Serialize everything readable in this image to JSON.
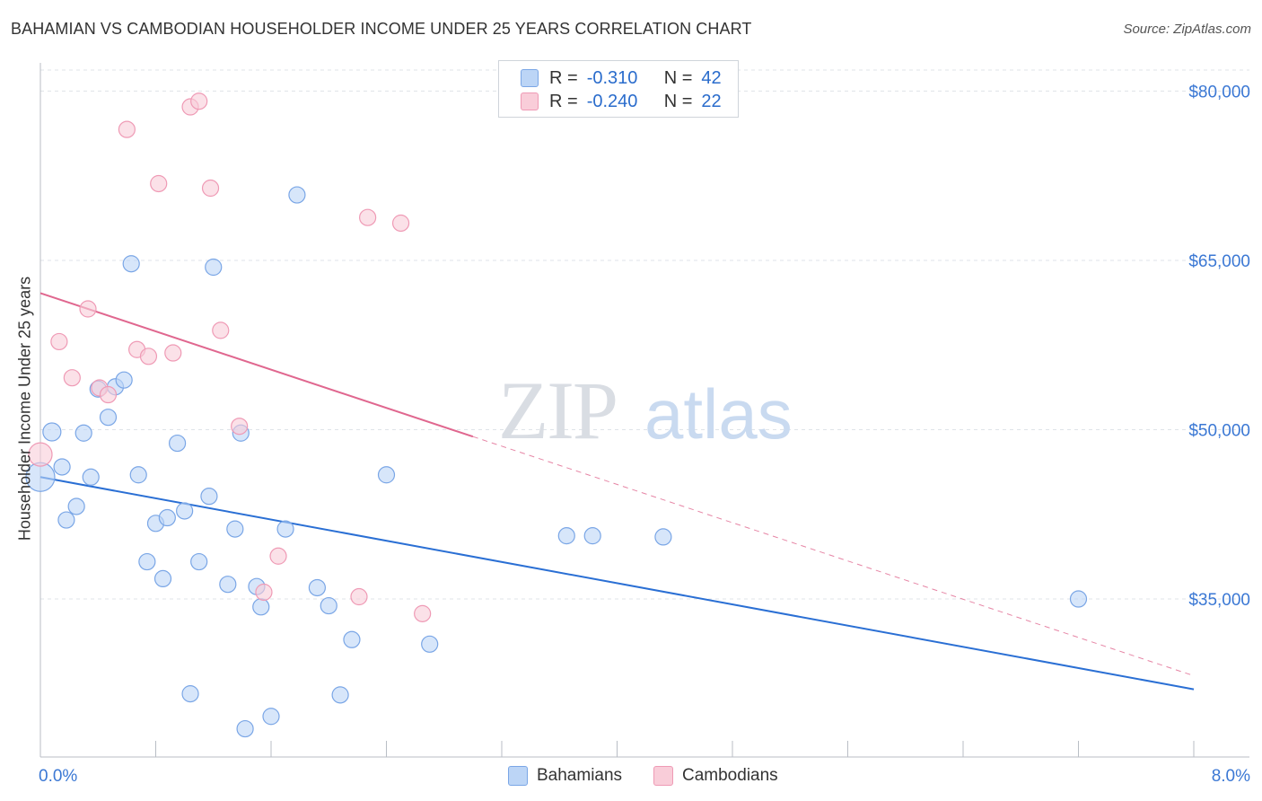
{
  "title": "BAHAMIAN VS CAMBODIAN HOUSEHOLDER INCOME UNDER 25 YEARS CORRELATION CHART",
  "source": "Source: ZipAtlas.com",
  "watermark": {
    "zip": "ZIP",
    "atlas": "atlas"
  },
  "legend_top": [
    {
      "r_label": "R =",
      "r_value": "-0.310",
      "n_label": "N =",
      "n_value": "42",
      "color": "#7aa6e6",
      "fill": "#bcd5f6"
    },
    {
      "r_label": "R =",
      "r_value": "-0.240",
      "n_label": "N =",
      "n_value": "22",
      "color": "#ef9ab5",
      "fill": "#f9cdd9"
    }
  ],
  "legend_bottom": [
    {
      "label": "Bahamians",
      "color": "#7aa6e6",
      "fill": "#bcd5f6"
    },
    {
      "label": "Cambodians",
      "color": "#ef9ab5",
      "fill": "#f9cdd9"
    }
  ],
  "chart_data": {
    "type": "scatter",
    "title": "BAHAMIAN VS CAMBODIAN HOUSEHOLDER INCOME UNDER 25 YEARS CORRELATION CHART",
    "xlabel": "",
    "ylabel": "Householder Income Under 25 years",
    "xlim": [
      0,
      8
    ],
    "ylim": [
      21000,
      82500
    ],
    "x_tick_labels": [
      "0.0%",
      "8.0%"
    ],
    "y_ticks": [
      35000,
      50000,
      65000,
      80000
    ],
    "y_tick_labels": [
      "$35,000",
      "$50,000",
      "$65,000",
      "$80,000"
    ],
    "grid": true,
    "legend_position": "top-center",
    "series": [
      {
        "name": "Bahamians",
        "color": "#2a6fd4",
        "marker_fill": "#bcd5f6",
        "marker_stroke": "#7aa6e6",
        "trend": {
          "x": [
            0,
            8
          ],
          "y": [
            45800,
            27000
          ],
          "dashed_from": null
        },
        "points": [
          [
            0.0,
            45800,
            16
          ],
          [
            0.08,
            49800,
            10
          ],
          [
            0.15,
            46700,
            9
          ],
          [
            0.18,
            42000,
            9
          ],
          [
            0.25,
            43200,
            9
          ],
          [
            0.3,
            49700,
            9
          ],
          [
            0.35,
            45800,
            9
          ],
          [
            0.4,
            53600,
            9
          ],
          [
            0.47,
            51100,
            9
          ],
          [
            0.52,
            53800,
            9
          ],
          [
            0.58,
            54400,
            9
          ],
          [
            0.63,
            64700,
            9
          ],
          [
            0.68,
            46000,
            9
          ],
          [
            0.74,
            38300,
            9
          ],
          [
            0.8,
            41700,
            9
          ],
          [
            0.85,
            36800,
            9
          ],
          [
            0.88,
            42200,
            9
          ],
          [
            0.95,
            48800,
            9
          ],
          [
            1.0,
            42800,
            9
          ],
          [
            1.04,
            26600,
            9
          ],
          [
            1.1,
            38300,
            9
          ],
          [
            1.17,
            44100,
            9
          ],
          [
            1.2,
            64400,
            9
          ],
          [
            1.3,
            36300,
            9
          ],
          [
            1.35,
            41200,
            9
          ],
          [
            1.39,
            49700,
            9
          ],
          [
            1.42,
            23500,
            9
          ],
          [
            1.5,
            36100,
            9
          ],
          [
            1.53,
            34300,
            9
          ],
          [
            1.6,
            24600,
            9
          ],
          [
            1.7,
            41200,
            9
          ],
          [
            1.78,
            70800,
            9
          ],
          [
            1.92,
            36000,
            9
          ],
          [
            2.0,
            34400,
            9
          ],
          [
            2.08,
            26500,
            9
          ],
          [
            2.16,
            31400,
            9
          ],
          [
            2.4,
            46000,
            9
          ],
          [
            2.7,
            31000,
            9
          ],
          [
            3.65,
            40600,
            9
          ],
          [
            3.83,
            40600,
            9
          ],
          [
            4.32,
            40500,
            9
          ],
          [
            7.2,
            35000,
            9
          ]
        ]
      },
      {
        "name": "Cambodians",
        "color": "#e0678f",
        "marker_fill": "#f9cdd9",
        "marker_stroke": "#ef9ab5",
        "trend": {
          "x": [
            0,
            8
          ],
          "y": [
            62100,
            28200
          ],
          "dashed_from": 3.0
        },
        "points": [
          [
            0.0,
            47800,
            13
          ],
          [
            0.13,
            57800,
            9
          ],
          [
            0.22,
            54600,
            9
          ],
          [
            0.33,
            60700,
            9
          ],
          [
            0.41,
            53700,
            9
          ],
          [
            0.47,
            53100,
            9
          ],
          [
            0.6,
            76600,
            9
          ],
          [
            0.67,
            57100,
            9
          ],
          [
            0.75,
            56500,
            9
          ],
          [
            0.82,
            71800,
            9
          ],
          [
            0.92,
            56800,
            9
          ],
          [
            1.04,
            78600,
            9
          ],
          [
            1.1,
            79100,
            9
          ],
          [
            1.18,
            71400,
            9
          ],
          [
            1.25,
            58800,
            9
          ],
          [
            1.38,
            50300,
            9
          ],
          [
            1.55,
            35600,
            9
          ],
          [
            1.65,
            38800,
            9
          ],
          [
            2.21,
            35200,
            9
          ],
          [
            2.27,
            68800,
            9
          ],
          [
            2.5,
            68300,
            9
          ],
          [
            2.65,
            33700,
            9
          ]
        ]
      }
    ]
  }
}
